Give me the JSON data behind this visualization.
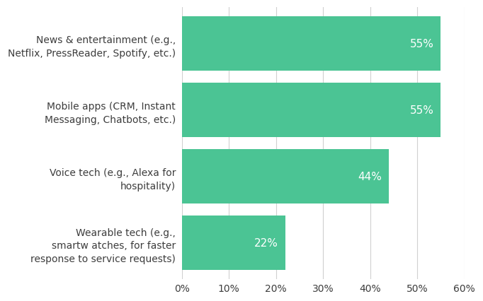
{
  "categories": [
    "Wearable tech (e.g.,\nsmartw atches, for faster\nresponse to service requests)",
    "Voice tech (e.g., Alexa for\nhospitality)",
    "Mobile apps (CRM, Instant\nMessaging, Chatbots, etc.)",
    "News & entertainment (e.g.,\nNetflix, PressReader, Spotify, etc.)"
  ],
  "values": [
    22,
    44,
    55,
    55
  ],
  "bar_color": "#4bc494",
  "label_color": "#ffffff",
  "text_color": "#3d3d3d",
  "background_color": "#ffffff",
  "xlim": [
    0,
    60
  ],
  "xticks": [
    0,
    10,
    20,
    30,
    40,
    50,
    60
  ],
  "xtick_labels": [
    "0%",
    "10%",
    "20%",
    "30%",
    "40%",
    "50%",
    "60%"
  ],
  "bar_height": 0.82,
  "value_label_fontsize": 11,
  "tick_label_fontsize": 10,
  "category_label_fontsize": 10,
  "figsize": [
    6.82,
    4.27
  ],
  "dpi": 100
}
